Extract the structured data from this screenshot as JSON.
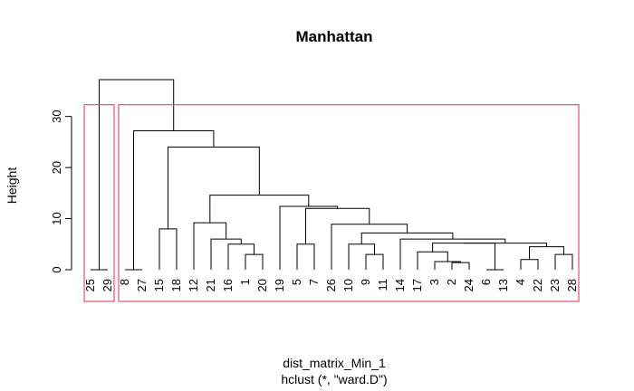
{
  "chart_data": {
    "type": "dendrogram",
    "title": "Manhattan",
    "ylabel": "Height",
    "xlabel": "dist_matrix_Min_1",
    "sublabel": "hclust (*, \"ward.D\")",
    "ylim": [
      0,
      37.2
    ],
    "yticks": [
      0,
      10,
      20,
      30
    ],
    "leaf_order": [
      "25",
      "29",
      "8",
      "27",
      "15",
      "18",
      "12",
      "21",
      "16",
      "1",
      "20",
      "19",
      "5",
      "7",
      "26",
      "10",
      "9",
      "11",
      "14",
      "17",
      "3",
      "2",
      "24",
      "6",
      "13",
      "4",
      "22",
      "23",
      "28"
    ],
    "merges": [
      {
        "id": "a",
        "left": "leaf:25",
        "right": "leaf:29",
        "height": 0.0
      },
      {
        "id": "b",
        "left": "leaf:8",
        "right": "leaf:27",
        "height": 0.0
      },
      {
        "id": "c",
        "left": "leaf:15",
        "right": "leaf:18",
        "height": 8.0
      },
      {
        "id": "d",
        "left": "leaf:1",
        "right": "leaf:20",
        "height": 3.0
      },
      {
        "id": "e",
        "left": "leaf:16",
        "right": "node:d",
        "height": 5.0
      },
      {
        "id": "f",
        "left": "leaf:21",
        "right": "node:e",
        "height": 6.0
      },
      {
        "id": "g",
        "left": "leaf:12",
        "right": "node:f",
        "height": 9.2
      },
      {
        "id": "h",
        "left": "leaf:5",
        "right": "leaf:7",
        "height": 5.0
      },
      {
        "id": "i",
        "left": "leaf:9",
        "right": "leaf:11",
        "height": 3.0
      },
      {
        "id": "j",
        "left": "leaf:10",
        "right": "node:i",
        "height": 5.0
      },
      {
        "id": "k",
        "left": "leaf:2",
        "right": "leaf:24",
        "height": 1.4
      },
      {
        "id": "l",
        "left": "leaf:3",
        "right": "node:k",
        "height": 1.6
      },
      {
        "id": "m",
        "left": "leaf:17",
        "right": "node:l",
        "height": 3.5
      },
      {
        "id": "n",
        "left": "leaf:6",
        "right": "leaf:13",
        "height": 0.0
      },
      {
        "id": "o",
        "left": "node:m",
        "right": "node:n",
        "height": 5.2
      },
      {
        "id": "p",
        "left": "leaf:4",
        "right": "leaf:22",
        "height": 2.0
      },
      {
        "id": "q",
        "left": "leaf:23",
        "right": "leaf:28",
        "height": 3.0
      },
      {
        "id": "r",
        "left": "node:p",
        "right": "node:q",
        "height": 4.5
      },
      {
        "id": "s",
        "left": "node:o",
        "right": "node:r",
        "height": 5.2
      },
      {
        "id": "t",
        "left": "leaf:14",
        "right": "node:s",
        "height": 6.0
      },
      {
        "id": "u",
        "left": "node:j",
        "right": "node:t",
        "height": 7.2
      },
      {
        "id": "v",
        "left": "leaf:26",
        "right": "node:u",
        "height": 8.9
      },
      {
        "id": "w",
        "left": "node:h",
        "right": "node:v",
        "height": 12.0
      },
      {
        "id": "x",
        "left": "leaf:19",
        "right": "node:w",
        "height": 12.4
      },
      {
        "id": "y",
        "left": "node:g",
        "right": "node:x",
        "height": 14.6
      },
      {
        "id": "z",
        "left": "node:c",
        "right": "node:y",
        "height": 24.0
      },
      {
        "id": "aa",
        "left": "node:b",
        "right": "node:z",
        "height": 27.2
      },
      {
        "id": "ab",
        "left": "node:a",
        "right": "node:aa",
        "height": 37.2
      }
    ],
    "cluster_boxes": [
      {
        "leaves": [
          "25",
          "29"
        ],
        "color": "#DF536B"
      },
      {
        "leaves": [
          "8",
          "27",
          "15",
          "18",
          "12",
          "21",
          "16",
          "1",
          "20",
          "19",
          "5",
          "7",
          "26",
          "10",
          "9",
          "11",
          "14",
          "17",
          "3",
          "2",
          "24",
          "6",
          "13",
          "4",
          "22",
          "23",
          "28"
        ],
        "color": "#DF536B"
      }
    ],
    "cut_height": 32.3
  }
}
